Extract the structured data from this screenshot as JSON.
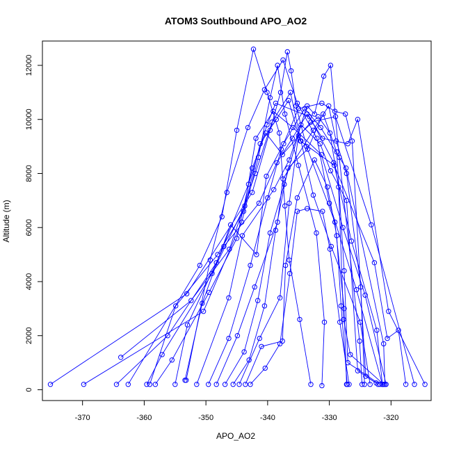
{
  "chart_data": {
    "type": "scatter",
    "title": "ATOM3 Southbound APO_AO2",
    "xlabel": "APO_AO2",
    "ylabel": "Altitude (m)",
    "xlim": [
      -376.5,
      -313.5
    ],
    "ylim": [
      -400,
      12900
    ],
    "xticks": [
      -370,
      -360,
      -350,
      -340,
      -330,
      -320
    ],
    "yticks": [
      0,
      2000,
      4000,
      6000,
      8000,
      10000,
      12000
    ],
    "grid": false,
    "style": "points connected by lines",
    "colors": {
      "series": "#0000ff",
      "axis": "#000000",
      "text": "#000000"
    },
    "series": [
      {
        "points": [
          [
            -375.2,
            200
          ],
          [
            -353.1,
            3550
          ],
          [
            -342.5,
            7300
          ],
          [
            -339.6,
            9600
          ],
          [
            -337.9,
            11000
          ],
          [
            -336.8,
            12500
          ],
          [
            -336.2,
            11800
          ],
          [
            -335.4,
            10500
          ],
          [
            -333.7,
            9000
          ],
          [
            -329.1,
            6200
          ],
          [
            -327.6,
            3000
          ],
          [
            -327.2,
            200
          ]
        ]
      },
      {
        "points": [
          [
            -369.8,
            200
          ],
          [
            -350.4,
            2900
          ],
          [
            -344.2,
            6200
          ],
          [
            -341.5,
            8600
          ],
          [
            -339.6,
            10800
          ],
          [
            -338.4,
            12000
          ],
          [
            -337.2,
            10200
          ],
          [
            -335.0,
            8300
          ],
          [
            -332.1,
            5800
          ],
          [
            -330.8,
            2500
          ],
          [
            -331.2,
            150
          ]
        ]
      },
      {
        "points": [
          [
            -364.5,
            200
          ],
          [
            -356.2,
            2000
          ],
          [
            -348.3,
            4700
          ],
          [
            -343.1,
            7600
          ],
          [
            -340.1,
            9800
          ],
          [
            -338.7,
            10600
          ],
          [
            -333.2,
            10100
          ],
          [
            -329.3,
            8400
          ],
          [
            -326.4,
            5500
          ],
          [
            -322.3,
            2200
          ],
          [
            -321.4,
            200
          ]
        ]
      },
      {
        "points": [
          [
            -363.8,
            1200
          ],
          [
            -352.4,
            3300
          ],
          [
            -346.2,
            5200
          ],
          [
            -342.0,
            8000
          ],
          [
            -339.3,
            9900
          ],
          [
            -336.3,
            11000
          ],
          [
            -334.6,
            9200
          ],
          [
            -332.6,
            7200
          ],
          [
            -329.7,
            5300
          ],
          [
            -325.0,
            2500
          ],
          [
            -323.4,
            200
          ]
        ]
      },
      {
        "points": [
          [
            -362.6,
            200
          ],
          [
            -351.0,
            4600
          ],
          [
            -347.4,
            6400
          ],
          [
            -345.0,
            9600
          ],
          [
            -342.3,
            12600
          ],
          [
            -340.1,
            11000
          ],
          [
            -338.1,
            9500
          ],
          [
            -337.2,
            6800
          ],
          [
            -336.5,
            4800
          ],
          [
            -334.8,
            2600
          ],
          [
            -333.0,
            200
          ]
        ]
      },
      {
        "points": [
          [
            -359.6,
            200
          ],
          [
            -357.1,
            1300
          ],
          [
            -349.0,
            4300
          ],
          [
            -343.7,
            6800
          ],
          [
            -341.9,
            9300
          ],
          [
            -339.1,
            10300
          ],
          [
            -335.9,
            9700
          ],
          [
            -331.3,
            8700
          ],
          [
            -327.8,
            6000
          ],
          [
            -324.2,
            3500
          ],
          [
            -320.8,
            200
          ]
        ]
      },
      {
        "points": [
          [
            -358.2,
            200
          ],
          [
            -355.5,
            1100
          ],
          [
            -349.5,
            3600
          ],
          [
            -345.0,
            5600
          ],
          [
            -342.5,
            8200
          ],
          [
            -340.3,
            9500
          ],
          [
            -337.6,
            8700
          ],
          [
            -333.0,
            9900
          ],
          [
            -329.0,
            10100
          ],
          [
            -323.2,
            6100
          ],
          [
            -316.2,
            200
          ]
        ]
      },
      {
        "points": [
          [
            -359.1,
            200
          ],
          [
            -354.9,
            3100
          ],
          [
            -348.1,
            5000
          ],
          [
            -343.9,
            6600
          ],
          [
            -341.2,
            9100
          ],
          [
            -338.6,
            10000
          ],
          [
            -336.6,
            10700
          ],
          [
            -334.7,
            9200
          ],
          [
            -329.2,
            8300
          ],
          [
            -322.7,
            4700
          ],
          [
            -320.6,
            1900
          ],
          [
            -318.8,
            2200
          ],
          [
            -317.6,
            200
          ]
        ]
      },
      {
        "points": [
          [
            -355.0,
            200
          ],
          [
            -353.0,
            2400
          ],
          [
            -347.1,
            5300
          ],
          [
            -341.4,
            6900
          ],
          [
            -338.5,
            8400
          ],
          [
            -336.0,
            9300
          ],
          [
            -333.6,
            10200
          ],
          [
            -331.1,
            9300
          ],
          [
            -327.0,
            9100
          ],
          [
            -325.4,
            10000
          ],
          [
            -320.4,
            2900
          ],
          [
            -314.5,
            200
          ]
        ]
      },
      {
        "points": [
          [
            -353.4,
            350
          ],
          [
            -350.6,
            3200
          ],
          [
            -346.0,
            6100
          ],
          [
            -341.8,
            5000
          ],
          [
            -340.2,
            7900
          ],
          [
            -337.4,
            9100
          ],
          [
            -334.0,
            10400
          ],
          [
            -331.4,
            9700
          ],
          [
            -327.3,
            8200
          ],
          [
            -321.2,
            1700
          ],
          [
            -321.0,
            200
          ]
        ]
      },
      {
        "points": [
          [
            -353.2,
            350
          ],
          [
            -349.3,
            4800
          ],
          [
            -346.6,
            7300
          ],
          [
            -343.2,
            9700
          ],
          [
            -340.5,
            11100
          ],
          [
            -337.5,
            12200
          ],
          [
            -335.2,
            10600
          ],
          [
            -332.0,
            9300
          ],
          [
            -330.0,
            6900
          ],
          [
            -325.6,
            3700
          ],
          [
            -321.4,
            200
          ]
        ]
      },
      {
        "points": [
          [
            -351.5,
            200
          ],
          [
            -346.3,
            3400
          ],
          [
            -344.1,
            5700
          ],
          [
            -339.0,
            7400
          ],
          [
            -336.5,
            8500
          ],
          [
            -333.6,
            10500
          ],
          [
            -332.4,
            10200
          ],
          [
            -330.9,
            11600
          ],
          [
            -329.8,
            12000
          ],
          [
            -328.4,
            8600
          ],
          [
            -325.1,
            1800
          ],
          [
            -324.7,
            200
          ]
        ]
      },
      {
        "points": [
          [
            -349.6,
            200
          ],
          [
            -346.3,
            1900
          ],
          [
            -342.8,
            4600
          ],
          [
            -340.0,
            7100
          ],
          [
            -337.8,
            8900
          ],
          [
            -335.0,
            10400
          ],
          [
            -331.2,
            10600
          ],
          [
            -329.1,
            10300
          ],
          [
            -327.4,
            10200
          ],
          [
            -326.3,
            9200
          ],
          [
            -324.1,
            500
          ],
          [
            -322.1,
            200
          ]
        ]
      },
      {
        "points": [
          [
            -348.3,
            200
          ],
          [
            -344.9,
            2000
          ],
          [
            -342.1,
            3800
          ],
          [
            -338.4,
            6200
          ],
          [
            -337.5,
            7800
          ],
          [
            -332.6,
            9600
          ],
          [
            -330.1,
            10500
          ],
          [
            -328.9,
            9200
          ],
          [
            -327.2,
            8000
          ],
          [
            -324.9,
            3800
          ],
          [
            -324.3,
            200
          ]
        ]
      },
      {
        "points": [
          [
            -346.9,
            200
          ],
          [
            -343.8,
            1400
          ],
          [
            -341.6,
            3300
          ],
          [
            -339.6,
            5800
          ],
          [
            -337.3,
            7600
          ],
          [
            -334.6,
            9800
          ],
          [
            -331.5,
            9100
          ],
          [
            -329.8,
            8100
          ],
          [
            -327.2,
            7000
          ],
          [
            -325.4,
            700
          ],
          [
            -322.4,
            250
          ]
        ]
      },
      {
        "points": [
          [
            -345.6,
            200
          ],
          [
            -343.0,
            1100
          ],
          [
            -340.5,
            3100
          ],
          [
            -338.7,
            5900
          ],
          [
            -336.7,
            8200
          ],
          [
            -333.5,
            8900
          ],
          [
            -331.0,
            10200
          ],
          [
            -328.8,
            8800
          ],
          [
            -327.6,
            4400
          ],
          [
            -327.0,
            1000
          ],
          [
            -321.8,
            200
          ]
        ]
      },
      {
        "points": [
          [
            -344.6,
            200
          ],
          [
            -341.3,
            1900
          ],
          [
            -338.0,
            3400
          ],
          [
            -336.5,
            6900
          ],
          [
            -335.0,
            9400
          ],
          [
            -331.8,
            10100
          ],
          [
            -329.9,
            9500
          ],
          [
            -328.5,
            7500
          ],
          [
            -327.7,
            2600
          ],
          [
            -326.6,
            1300
          ],
          [
            -321.2,
            200
          ]
        ]
      },
      {
        "points": [
          [
            -343.6,
            200
          ],
          [
            -341.0,
            1600
          ],
          [
            -337.6,
            1800
          ],
          [
            -337.1,
            4600
          ],
          [
            -335.2,
            7100
          ],
          [
            -332.4,
            8500
          ],
          [
            -330.3,
            7500
          ],
          [
            -328.8,
            5700
          ],
          [
            -328.1,
            3100
          ],
          [
            -327.1,
            200
          ]
        ]
      },
      {
        "points": [
          [
            -342.8,
            200
          ],
          [
            -340.4,
            800
          ],
          [
            -338.0,
            1700
          ],
          [
            -336.4,
            4300
          ],
          [
            -335.2,
            6600
          ],
          [
            -333.6,
            6700
          ],
          [
            -331.1,
            6600
          ],
          [
            -329.9,
            5200
          ],
          [
            -328.3,
            2500
          ],
          [
            -326.8,
            200
          ]
        ]
      }
    ]
  }
}
